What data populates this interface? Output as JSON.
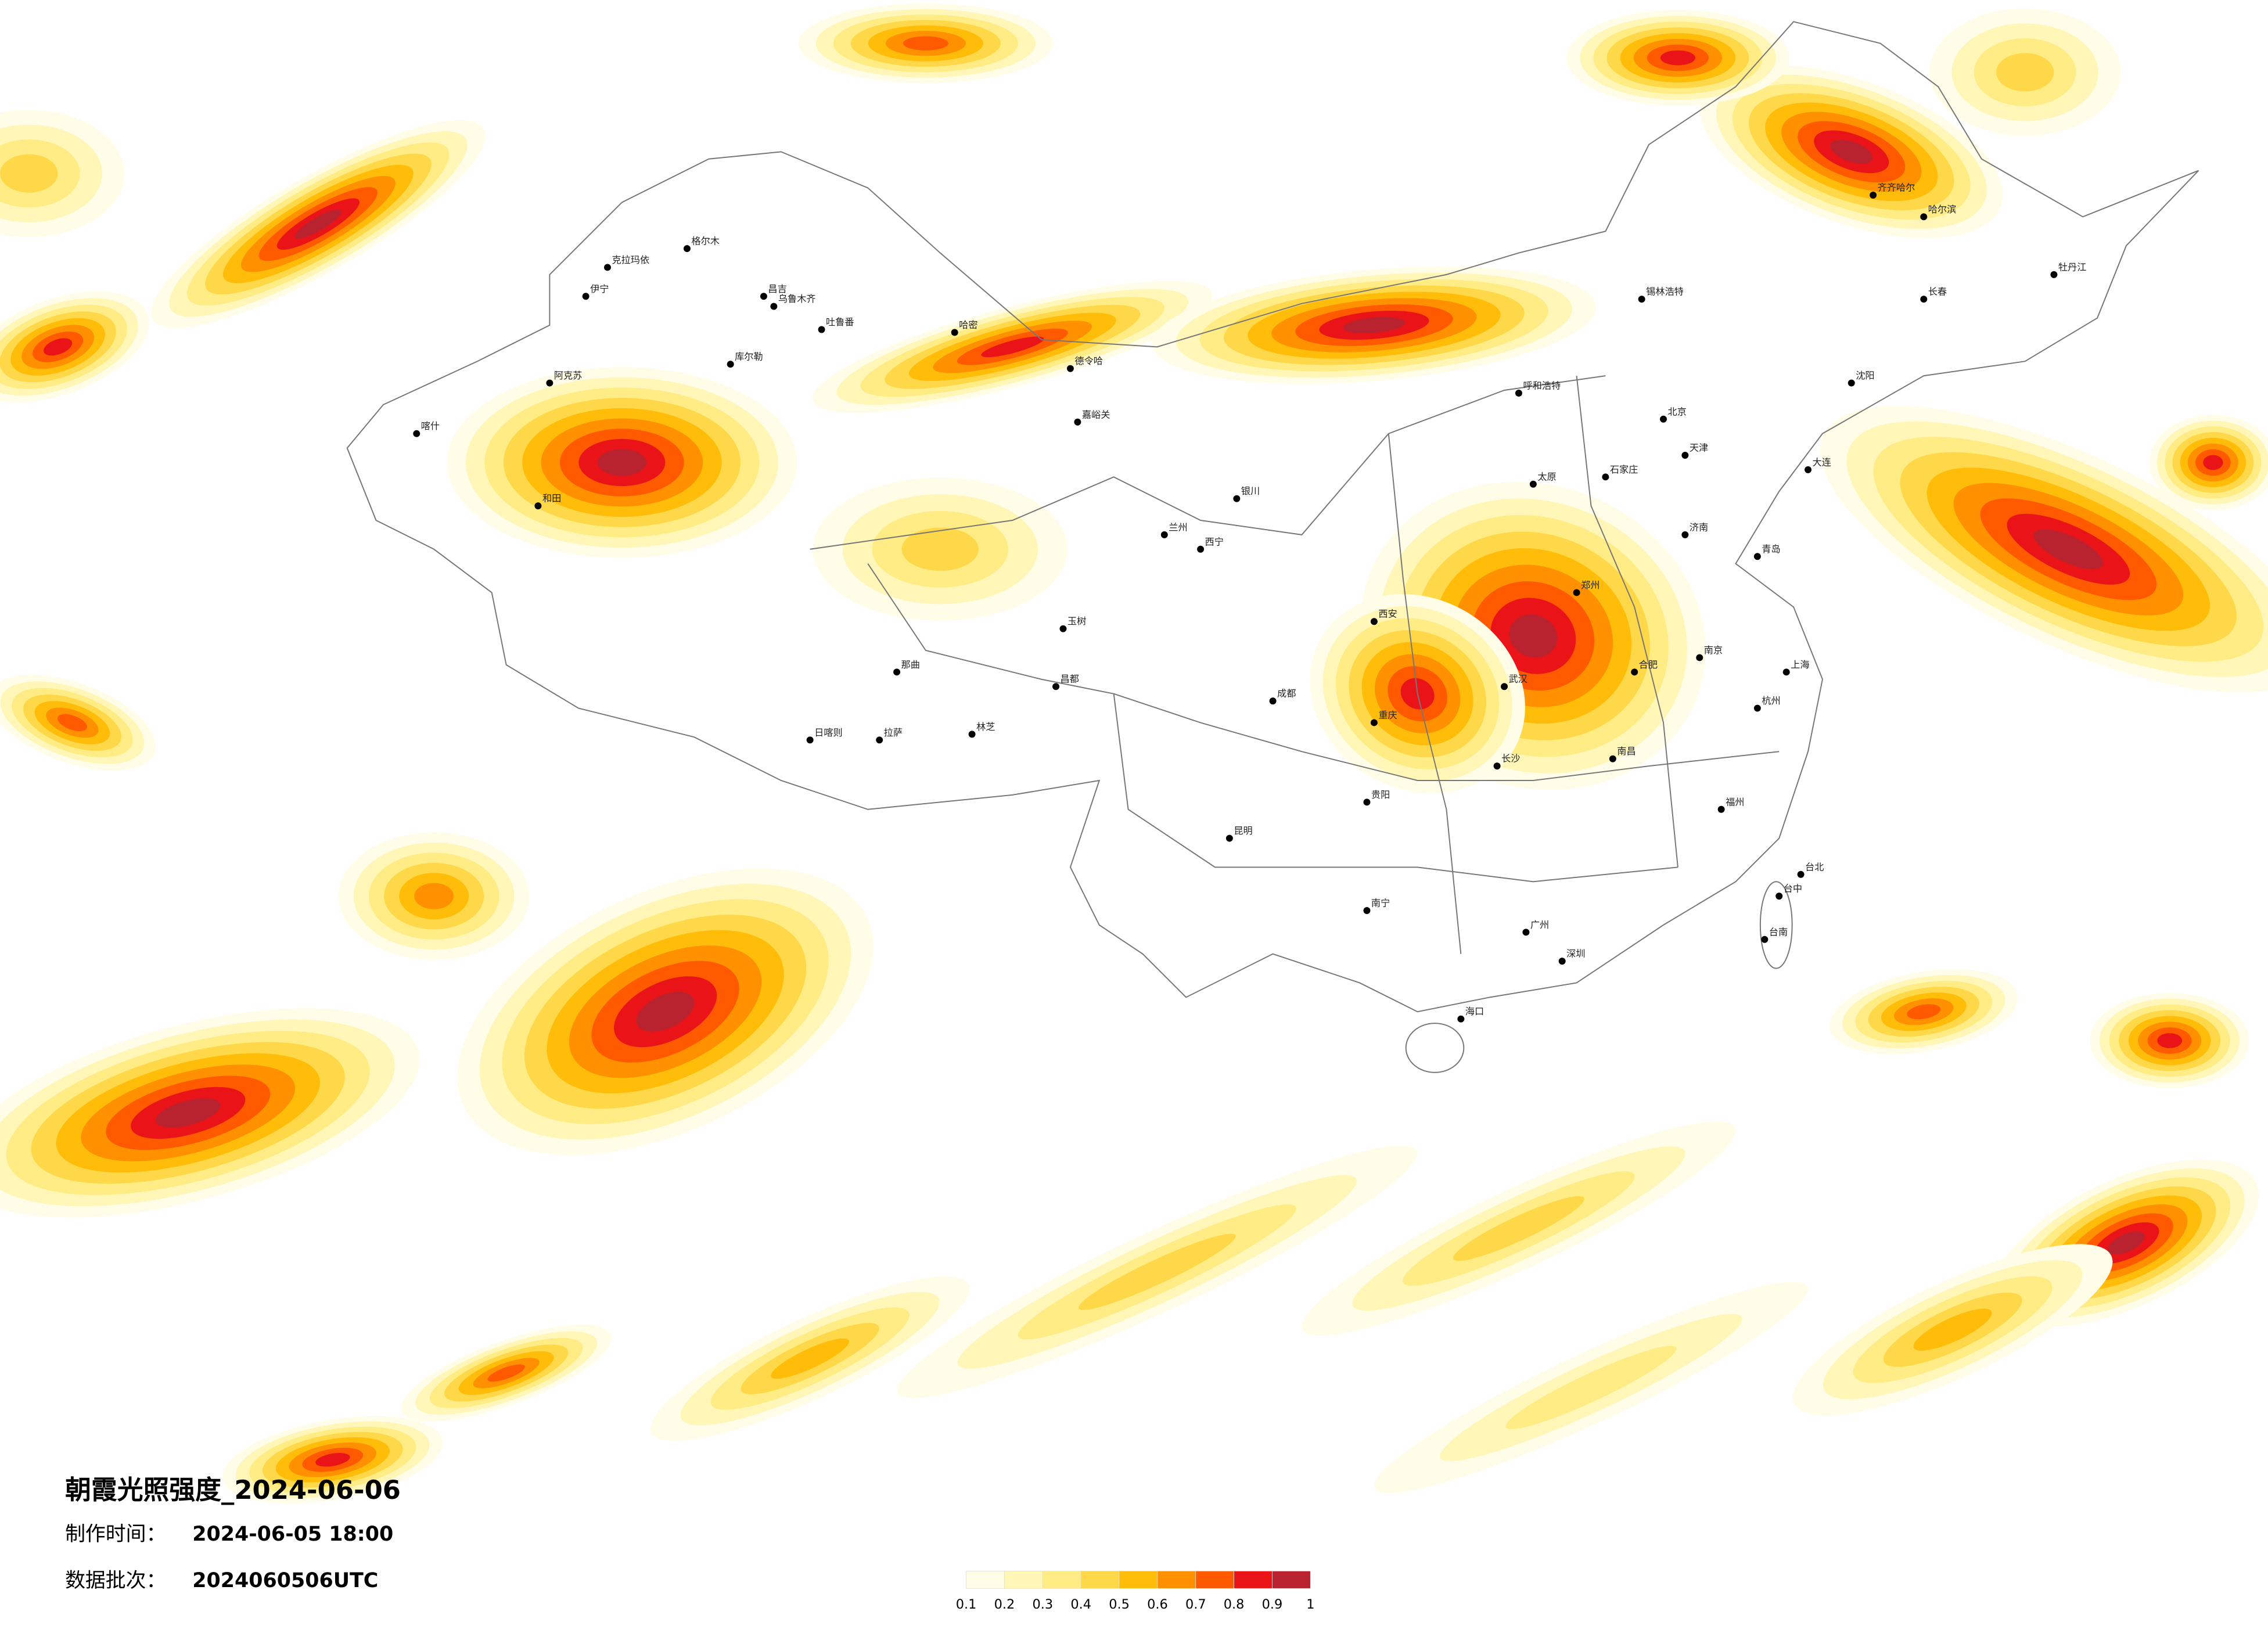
{
  "header": {
    "title": "朝霞光照强度_2024-06-06"
  },
  "info": [
    {
      "label": "制作时间：",
      "value": "2024-06-05 18:00"
    },
    {
      "label": "数据批次：",
      "value": "2024060506UTC"
    }
  ],
  "legend": {
    "colors": [
      "#fffde8",
      "#fff6b8",
      "#ffec85",
      "#ffd84a",
      "#ffbd0a",
      "#ff9000",
      "#ff5a00",
      "#ea1418",
      "#b8232f"
    ],
    "ticks": [
      0.1,
      0.2,
      0.3,
      0.4,
      0.5,
      0.6,
      0.7,
      0.8,
      0.9,
      1
    ]
  },
  "cities": [
    "克拉玛依",
    "伊宁",
    "昌吉",
    "乌鲁木齐",
    "吐鲁番",
    "哈密",
    "库尔勒",
    "阿克苏",
    "喀什",
    "和田",
    "格尔木",
    "德令哈",
    "西宁",
    "玉树",
    "那曲",
    "日喀则",
    "拉萨",
    "林芝",
    "昌都",
    "嘉峪关",
    "银川",
    "兰州",
    "呼和浩特",
    "锡林浩特",
    "齐齐哈尔",
    "哈尔滨",
    "牡丹江",
    "长春",
    "沈阳",
    "大连",
    "北京",
    "天津",
    "石家庄",
    "太原",
    "济南",
    "青岛",
    "郑州",
    "西安",
    "成都",
    "重庆",
    "武汉",
    "合肥",
    "南京",
    "上海",
    "杭州",
    "长沙",
    "南昌",
    "福州",
    "贵阳",
    "昆明",
    "南宁",
    "广州",
    "深圳",
    "海口",
    "台北",
    "台中",
    "台南"
  ]
}
